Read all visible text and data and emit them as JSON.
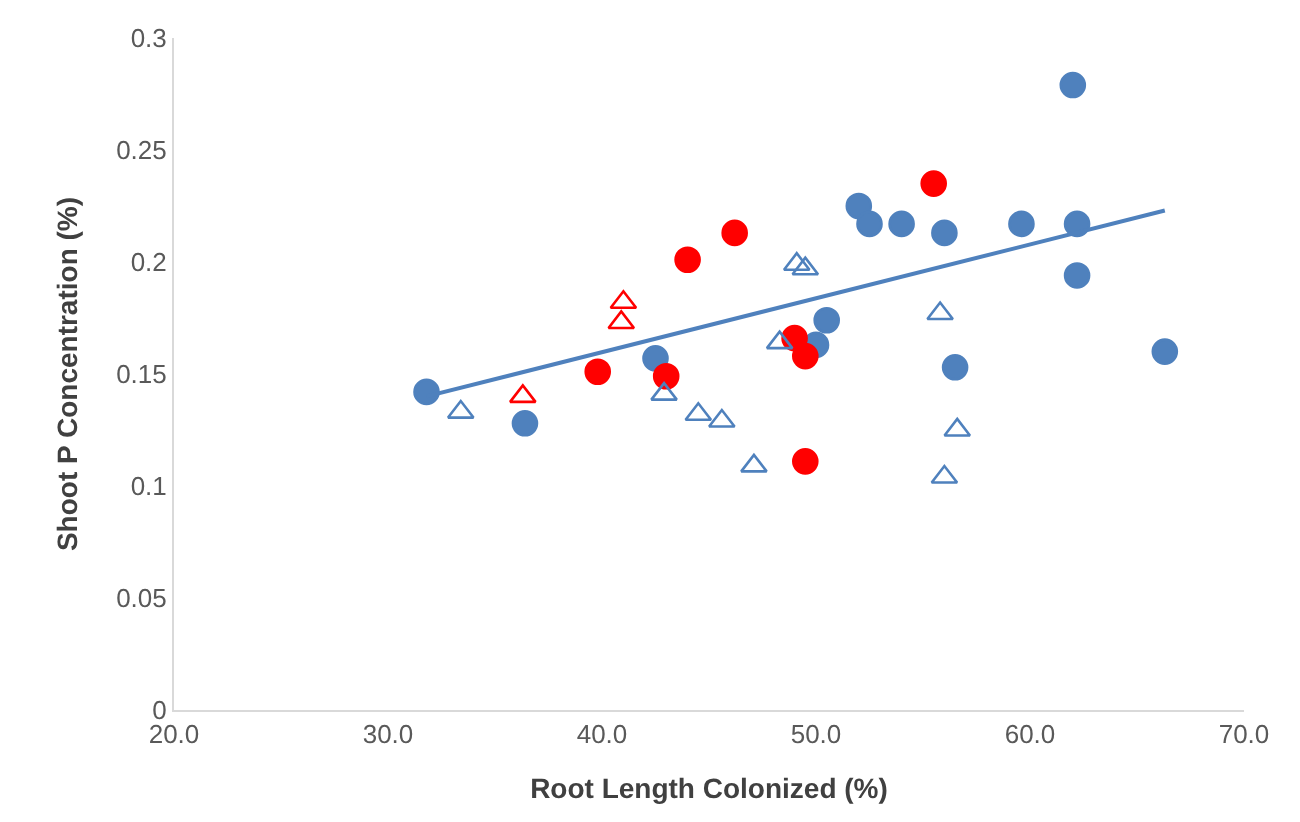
{
  "chart_data": {
    "type": "scatter",
    "xlabel": "Root Length Colonized (%)",
    "ylabel": "Shoot P Concentration (%)",
    "xlim": [
      20,
      70
    ],
    "xticks": [
      {
        "value": 20,
        "label": "20.0"
      },
      {
        "value": 30,
        "label": "30.0"
      },
      {
        "value": 40,
        "label": "40.0"
      },
      {
        "value": 50,
        "label": "50.0"
      },
      {
        "value": 60,
        "label": "60.0"
      },
      {
        "value": 70,
        "label": "70.0"
      }
    ],
    "ylim": [
      0,
      0.3
    ],
    "yticks": [
      0,
      0.05,
      0.1,
      0.15,
      0.2,
      0.25,
      0.3
    ],
    "grid": false,
    "series": [
      {
        "color": "#4f81bd",
        "marker": "circle",
        "x": [
          31.8,
          36.4,
          42.5,
          50.0,
          50.5,
          52.0,
          52.5,
          54.0,
          56.0,
          56.5,
          59.6,
          62.0,
          62.2,
          62.2,
          66.3
        ],
        "values": [
          0.142,
          0.128,
          0.157,
          0.163,
          0.174,
          0.225,
          0.217,
          0.217,
          0.213,
          0.153,
          0.217,
          0.279,
          0.217,
          0.194,
          0.16
        ]
      },
      {
        "color": "#ff0000",
        "marker": "circle",
        "x": [
          39.8,
          43.0,
          44.0,
          46.2,
          49.0,
          49.5,
          49.5,
          55.5
        ],
        "values": [
          0.151,
          0.149,
          0.201,
          0.213,
          0.166,
          0.158,
          0.111,
          0.235
        ]
      },
      {
        "color": "#ff0000",
        "marker": "triangle",
        "x": [
          36.3,
          40.9,
          41.0
        ],
        "values": [
          0.14,
          0.173,
          0.182
        ]
      },
      {
        "color": "#4f81bd",
        "marker": "triangle",
        "x": [
          33.4,
          42.9,
          44.5,
          45.6,
          47.1,
          48.3,
          49.1,
          49.5,
          55.8,
          56.0,
          56.6
        ],
        "values": [
          0.133,
          0.141,
          0.132,
          0.129,
          0.109,
          0.164,
          0.199,
          0.197,
          0.177,
          0.104,
          0.125
        ]
      },
      {
        "type": "line",
        "color": "#4f81bd",
        "marker": "none",
        "line_style": "solid",
        "x": [
          31.8,
          66.3
        ],
        "values": [
          0.14,
          0.223
        ]
      }
    ]
  }
}
